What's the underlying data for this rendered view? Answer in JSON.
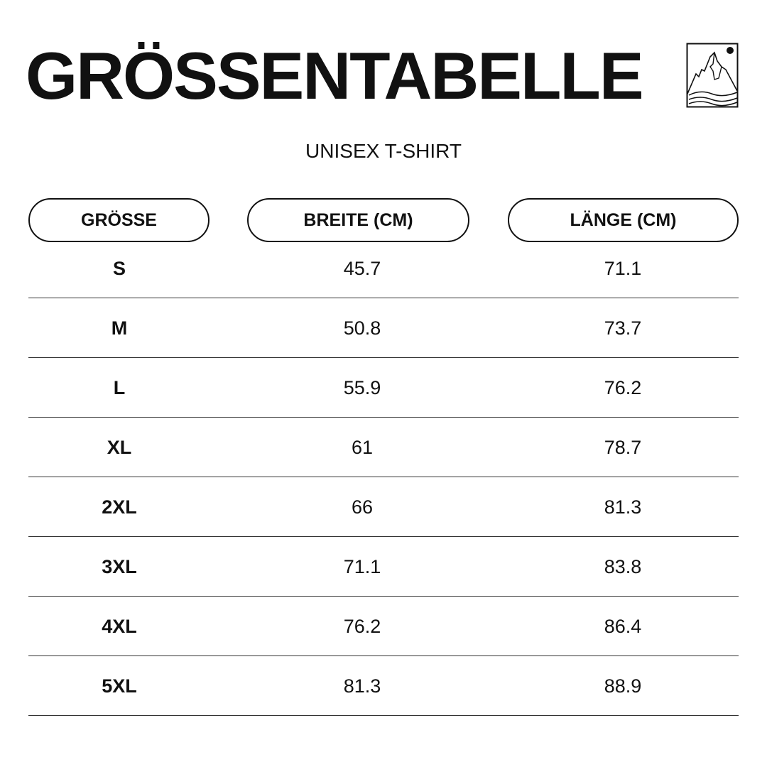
{
  "title": "GRÖSSENTABELLE",
  "subtitle": "UNISEX T-SHIRT",
  "logo": "mountain-logo-icon",
  "headers": [
    "GRÖSSE",
    "BREITE (CM)",
    "LÄNGE (CM)"
  ],
  "rows": [
    [
      "S",
      "45.7",
      "71.1"
    ],
    [
      "M",
      "50.8",
      "73.7"
    ],
    [
      "L",
      "55.9",
      "76.2"
    ],
    [
      "XL",
      "61",
      "78.7"
    ],
    [
      "2XL",
      "66",
      "81.3"
    ],
    [
      "3XL",
      "71.1",
      "83.8"
    ],
    [
      "4XL",
      "76.2",
      "86.4"
    ],
    [
      "5XL",
      "81.3",
      "88.9"
    ]
  ]
}
